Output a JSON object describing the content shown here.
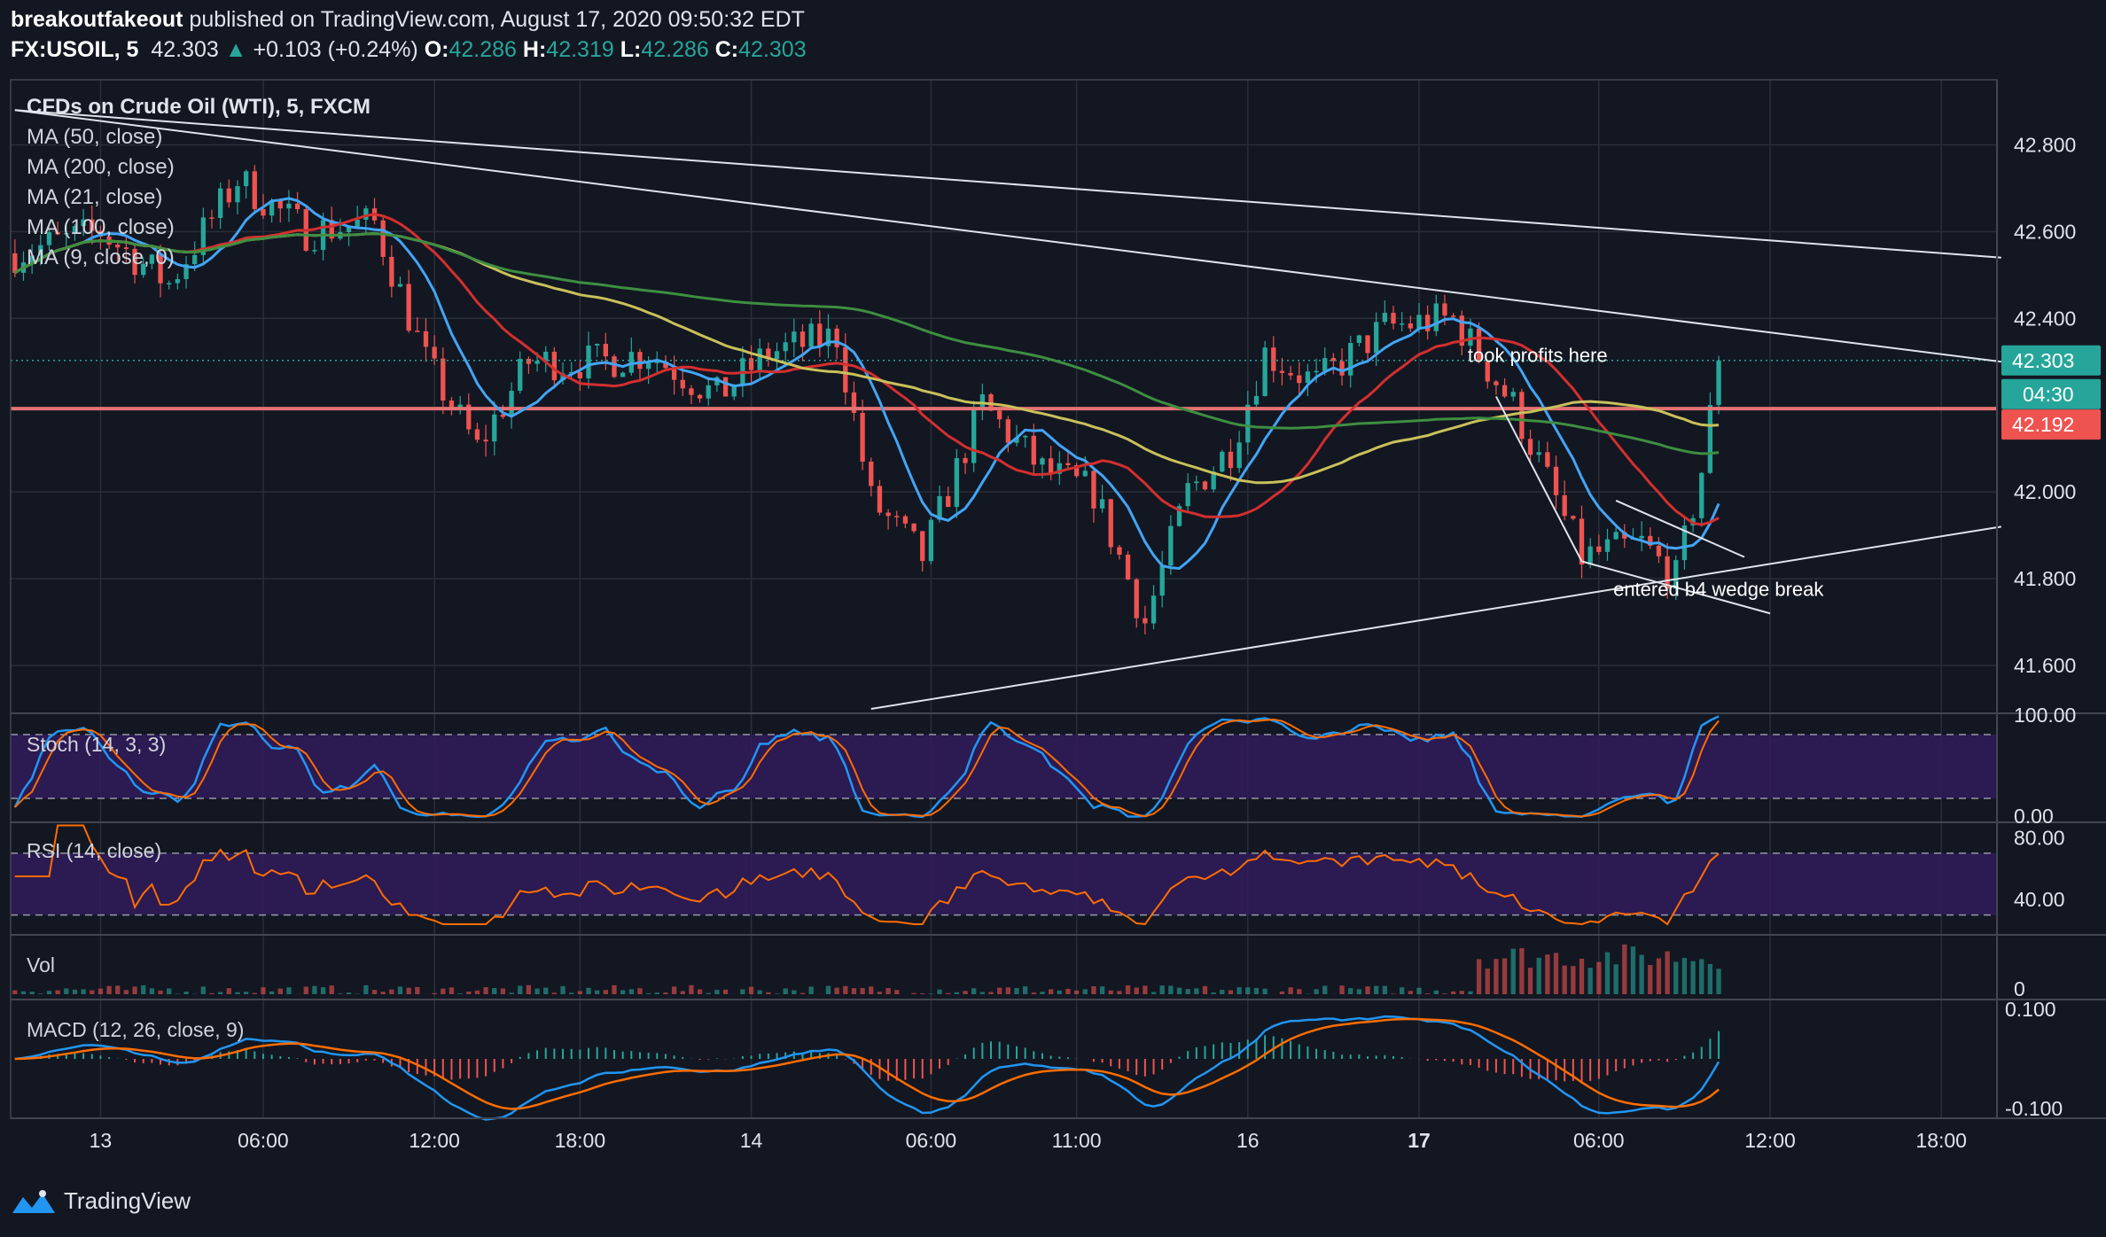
{
  "header": {
    "author": "breakoutfakeout",
    "published": " published on TradingView.com, August 17, 2020 09:50:32 EDT",
    "symbol": "FX:USOIL, 5",
    "last": "42.303",
    "change_arrow": "▲",
    "change": "+0.103 (+0.24%)",
    "o_label": "O:",
    "o": "42.286",
    "h_label": "H:",
    "h": "42.319",
    "l_label": "L:",
    "l": "42.286",
    "c_label": "C:",
    "c": "42.303"
  },
  "footer": {
    "brand": "TradingView"
  },
  "colors": {
    "background": "#131722",
    "grid": "#2a2e39",
    "up": "#26a69a",
    "down": "#ef5350",
    "ma50": "#c9c15a",
    "ma200": "#3e8e41",
    "ma21": "#d32f2f",
    "ma9": "#42a5f5",
    "stoch_k": "#2196f3",
    "stoch_d": "#ff6d00",
    "rsi": "#ff6d00",
    "band": "#311b5a",
    "level": "#e57373",
    "price_tag": "#26a69a",
    "level_tag": "#ef5350"
  },
  "chart_data": {
    "type": "candlestick",
    "title": "CFDs on Crude Oil (WTI), 5, FXCM",
    "legend": [
      "MA (50, close)",
      "MA (200, close)",
      "MA (21, close)",
      "MA (100, close)",
      "MA (9, close, 0)"
    ],
    "ylim": [
      41.5,
      42.95
    ],
    "y_ticks": [
      "42.800",
      "42.600",
      "42.400",
      "42.000",
      "41.800",
      "41.600"
    ],
    "x_ticks": [
      {
        "label": "13",
        "bar": 10
      },
      {
        "label": "06:00",
        "bar": 29
      },
      {
        "label": "12:00",
        "bar": 49
      },
      {
        "label": "18:00",
        "bar": 66
      },
      {
        "label": "14",
        "bar": 86
      },
      {
        "label": "06:00",
        "bar": 107
      },
      {
        "label": "11:00",
        "bar": 124
      },
      {
        "label": "16",
        "bar": 144
      },
      {
        "label": "17",
        "bar": 164
      },
      {
        "label": "06:00",
        "bar": 185
      },
      {
        "label": "12:00",
        "bar": 205
      },
      {
        "label": "18:00",
        "bar": 225
      }
    ],
    "bar_count": 200,
    "total_slots": 232,
    "price_path": [
      [
        0,
        42.55
      ],
      [
        10,
        42.6
      ],
      [
        18,
        42.48
      ],
      [
        26,
        42.72
      ],
      [
        34,
        42.6
      ],
      [
        42,
        42.62
      ],
      [
        48,
        42.3
      ],
      [
        54,
        42.1
      ],
      [
        60,
        42.3
      ],
      [
        68,
        42.3
      ],
      [
        74,
        42.32
      ],
      [
        82,
        42.22
      ],
      [
        88,
        42.32
      ],
      [
        96,
        42.36
      ],
      [
        100,
        41.98
      ],
      [
        106,
        41.85
      ],
      [
        113,
        42.2
      ],
      [
        120,
        42.05
      ],
      [
        126,
        42.0
      ],
      [
        132,
        41.7
      ],
      [
        137,
        42.0
      ],
      [
        142,
        42.1
      ],
      [
        146,
        42.32
      ],
      [
        152,
        42.25
      ],
      [
        160,
        42.38
      ],
      [
        168,
        42.4
      ],
      [
        175,
        42.2
      ],
      [
        183,
        41.85
      ],
      [
        190,
        41.88
      ],
      [
        194,
        41.8
      ],
      [
        197,
        42.05
      ],
      [
        199,
        42.3
      ]
    ],
    "current_price": 42.303,
    "level_price": 42.192,
    "price_tag": "42.303",
    "countdown_tag": "04:30",
    "level_tag": "42.192",
    "annotations": [
      {
        "text": "took profits here",
        "bar": 179,
        "price": 42.3
      },
      {
        "text": "entered b4 wedge break",
        "bar": 196,
        "price": 41.76
      }
    ],
    "trendlines": [
      {
        "from": [
          0,
          42.88
        ],
        "to": [
          232,
          42.3
        ]
      },
      {
        "from": [
          0,
          42.88
        ],
        "to": [
          232,
          42.54
        ]
      },
      {
        "from": [
          100,
          41.5
        ],
        "to": [
          232,
          41.92
        ]
      },
      {
        "from": [
          173,
          42.22
        ],
        "to": [
          183,
          41.84
        ]
      },
      {
        "from": [
          183,
          41.84
        ],
        "to": [
          205,
          41.72
        ]
      },
      {
        "from": [
          187,
          41.98
        ],
        "to": [
          202,
          41.85
        ]
      }
    ],
    "panels": [
      {
        "name": "stoch",
        "label": "Stoch (14, 3, 3)",
        "ylim": [
          0,
          100
        ],
        "ticks": [
          "100.00",
          "0.00"
        ],
        "band": [
          20,
          80
        ]
      },
      {
        "name": "rsi",
        "label": "RSI (14, close)",
        "ylim": [
          20,
          90
        ],
        "ticks": [
          "80.00",
          "40.00"
        ],
        "band": [
          30,
          70
        ]
      },
      {
        "name": "vol",
        "label": "Vol",
        "ticks": [
          "0"
        ]
      },
      {
        "name": "macd",
        "label": "MACD (12, 26, close, 9)",
        "ylim": [
          -0.12,
          0.12
        ],
        "ticks": [
          "0.100",
          "-0.100"
        ]
      }
    ]
  }
}
